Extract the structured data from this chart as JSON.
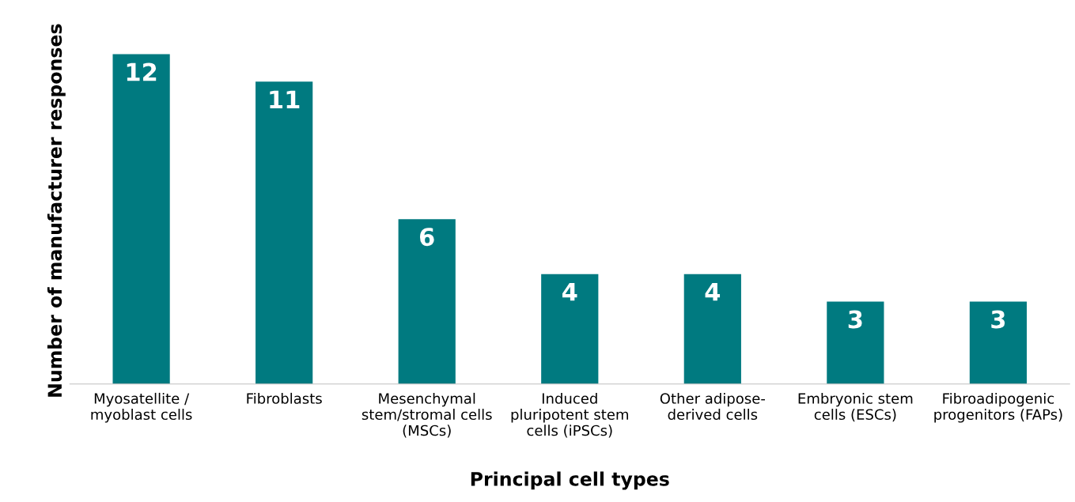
{
  "chart_data": {
    "type": "bar",
    "xlabel": "Principal cell types",
    "ylabel": "Number of manufacturer responses",
    "categories": [
      "Myosatellite /\nmyoblast cells",
      "Fibroblasts",
      "Mesenchymal\nstem/stromal cells\n(MSCs)",
      "Induced\npluripotent stem\ncells (iPSCs)",
      "Other adipose-\nderived cells",
      "Embryonic stem\ncells (ESCs)",
      "Fibroadipogenic\nprogenitors (FAPs)"
    ],
    "values": [
      12,
      11,
      6,
      4,
      4,
      3,
      3
    ],
    "color": "#007a80",
    "data_labels": true,
    "grid": false,
    "tick_labels": "x"
  }
}
